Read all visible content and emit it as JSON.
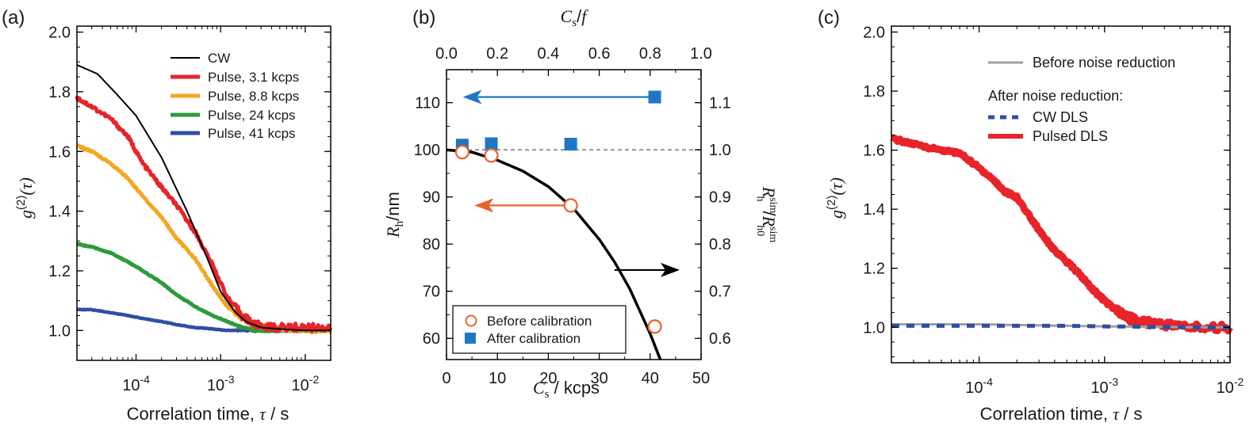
{
  "chart_data": [
    {
      "panel": "(a)",
      "type": "line",
      "xscale": "log",
      "xlabel_text": "Correlation time,",
      "xlabel_sym": "τ",
      "xlabel_unit": "/ s",
      "ylabel_main": "g",
      "ylabel_sup": "(2)",
      "ylabel_arg": "(τ)",
      "xlim": [
        2e-05,
        0.02
      ],
      "ylim": [
        0.9,
        2.02
      ],
      "xticks": [
        {
          "v": 0.0001,
          "base": "10",
          "exp": "-4"
        },
        {
          "v": 0.001,
          "base": "10",
          "exp": "-3"
        },
        {
          "v": 0.01,
          "base": "10",
          "exp": "-2"
        }
      ],
      "yticks": [
        "1.0",
        "1.2",
        "1.4",
        "1.6",
        "1.8",
        "2.0"
      ],
      "legend_position": "top-right",
      "series": [
        {
          "name": "CW",
          "color": "#000000",
          "x": [
            2e-05,
            3.5e-05,
            6e-05,
            0.0001,
            0.0002,
            0.0004,
            0.0007,
            0.001,
            0.0015,
            0.002,
            0.003,
            0.005,
            0.01,
            0.02
          ],
          "y": [
            1.89,
            1.86,
            1.79,
            1.72,
            1.58,
            1.4,
            1.24,
            1.13,
            1.06,
            1.03,
            1.01,
            1.005,
            1.0,
            1.0
          ]
        },
        {
          "name": "Pulse, 3.1 kcps",
          "color": "#e8232a",
          "x": [
            2e-05,
            3e-05,
            5e-05,
            8e-05,
            0.00012,
            0.0002,
            0.0003,
            0.0005,
            0.0008,
            0.0012,
            0.0018,
            0.0025,
            0.004,
            0.007,
            0.012,
            0.02
          ],
          "y": [
            1.78,
            1.75,
            1.71,
            1.65,
            1.56,
            1.48,
            1.42,
            1.33,
            1.22,
            1.11,
            1.05,
            1.02,
            1.01,
            1.01,
            1.01,
            1.01
          ]
        },
        {
          "name": "Pulse, 8.8 kcps",
          "color": "#f5a623",
          "x": [
            2e-05,
            3e-05,
            5e-05,
            8e-05,
            0.00012,
            0.0002,
            0.0003,
            0.0005,
            0.0008,
            0.0012,
            0.0018,
            0.0025,
            0.004,
            0.007,
            0.012,
            0.02
          ],
          "y": [
            1.62,
            1.6,
            1.56,
            1.51,
            1.45,
            1.38,
            1.31,
            1.24,
            1.15,
            1.08,
            1.04,
            1.02,
            1.01,
            1.0,
            1.0,
            1.0
          ]
        },
        {
          "name": "Pulse, 24 kcps",
          "color": "#2e9b3b",
          "x": [
            2e-05,
            3e-05,
            5e-05,
            8e-05,
            0.00012,
            0.0002,
            0.0003,
            0.0005,
            0.0008,
            0.0012,
            0.0018,
            0.0025,
            0.004,
            0.007,
            0.012,
            0.02
          ],
          "y": [
            1.29,
            1.28,
            1.26,
            1.23,
            1.2,
            1.16,
            1.12,
            1.08,
            1.05,
            1.03,
            1.01,
            1.0,
            1.0,
            1.0,
            1.0,
            1.0
          ]
        },
        {
          "name": "Pulse, 41 kcps",
          "color": "#2e4fa3",
          "x": [
            2e-05,
            3e-05,
            5e-05,
            8e-05,
            0.00012,
            0.0002,
            0.0003,
            0.0005,
            0.0008,
            0.0012,
            0.002,
            0.004,
            0.01,
            0.02
          ],
          "y": [
            1.07,
            1.07,
            1.06,
            1.05,
            1.04,
            1.03,
            1.02,
            1.01,
            1.005,
            1.0,
            1.0,
            1.0,
            1.0,
            1.0
          ]
        }
      ]
    },
    {
      "panel": "(b)",
      "type": "scatter",
      "xlabel_sym": "C",
      "xlabel_sub": "s",
      "xlabel_unit": "/ kcps",
      "top_label_sym": "C",
      "top_label_sub": "s",
      "top_label_rest": "/",
      "top_label_f": "f",
      "ylabel_sym": "R",
      "ylabel_sub": "h",
      "ylabel_unit": "/nm",
      "y2label_num": "R",
      "y2label_num_sub": "h",
      "y2label_den_sub": "h0",
      "y2label_sup": "sim",
      "y2label_sep": "/",
      "xlim": [
        0,
        50
      ],
      "ylim": [
        55.5,
        117
      ],
      "y2lim": [
        0.555,
        1.17
      ],
      "top_xlim": [
        0,
        1
      ],
      "xticks": [
        "0",
        "10",
        "20",
        "30",
        "40",
        "50"
      ],
      "yticks": [
        "60",
        "70",
        "80",
        "90",
        "100",
        "110"
      ],
      "y2ticks": [
        "0.6",
        "0.7",
        "0.8",
        "0.9",
        "1.0",
        "1.1"
      ],
      "top_xticks": [
        "0.0",
        "0.2",
        "0.4",
        "0.6",
        "0.8",
        "1.0"
      ],
      "reference_line": 100,
      "legend_position": "bottom-left",
      "series": [
        {
          "name": "Before calibration",
          "marker": "open-circle",
          "color": "#e8632a",
          "x": [
            3.1,
            8.8,
            24.4,
            40.9
          ],
          "y": [
            99.5,
            98.8,
            88.2,
            62.5
          ]
        },
        {
          "name": "After calibration",
          "marker": "filled-square",
          "color": "#1f77c4",
          "x": [
            3.1,
            8.8,
            24.4,
            40.9
          ],
          "y": [
            101,
            101.3,
            101.2,
            111.2
          ]
        }
      ],
      "simulation_curve": {
        "color": "#000000",
        "x": [
          0,
          5,
          10,
          15,
          20,
          25,
          30,
          33,
          36,
          40,
          42
        ],
        "y": [
          100,
          99.5,
          97.8,
          95.5,
          92.2,
          87.5,
          81,
          76.2,
          70.5,
          61,
          55.5
        ]
      },
      "arrows": [
        {
          "color": "#1f77c4",
          "from_x": 40.9,
          "to_x": 3.2,
          "y": 111.2
        },
        {
          "color": "#e8632a",
          "from_x": 24.4,
          "to_x": 5.5,
          "y": 88.2
        },
        {
          "color": "#000000",
          "from_x": 33,
          "to_x": 45.8,
          "y": 74.5
        }
      ]
    },
    {
      "panel": "(c)",
      "type": "line",
      "xscale": "log",
      "xlabel_text": "Correlation time,",
      "xlabel_sym": "τ",
      "xlabel_unit": "/ s",
      "ylabel_main": "g",
      "ylabel_sup": "(2)",
      "ylabel_arg": "(τ)",
      "xlim": [
        2e-05,
        0.01
      ],
      "ylim": [
        0.88,
        2.02
      ],
      "xticks": [
        {
          "v": 0.0001,
          "base": "10",
          "exp": "-4"
        },
        {
          "v": 0.001,
          "base": "10",
          "exp": "-3"
        },
        {
          "v": 0.01,
          "base": "10",
          "exp": "-2"
        }
      ],
      "yticks": [
        "1.0",
        "1.2",
        "1.4",
        "1.6",
        "1.8",
        "2.0"
      ],
      "legend_position": "top-right",
      "legend_subheading": "After noise reduction:",
      "series": [
        {
          "name": "Before noise reduction",
          "color": "#a0a0a0",
          "style": "solid",
          "x": [
            2e-05,
            0.0001,
            0.0005,
            0.001,
            0.002,
            0.005,
            0.01
          ],
          "y": [
            1.01,
            1.01,
            1.005,
            1.003,
            1.002,
            1.0,
            1.0
          ]
        },
        {
          "name": "CW DLS",
          "color": "#2e4fa3",
          "style": "dashed",
          "x": [
            2e-05,
            0.0001,
            0.0005,
            0.001,
            0.002,
            0.005,
            0.01
          ],
          "y": [
            1.005,
            1.005,
            1.005,
            1.003,
            1.002,
            1.0,
            1.0
          ]
        },
        {
          "name": "Pulsed DLS",
          "color": "#e8232a",
          "style": "solid",
          "x": [
            2e-05,
            3e-05,
            5e-05,
            7e-05,
            0.0001,
            0.00013,
            0.00016,
            0.0002,
            0.0003,
            0.0004,
            0.0006,
            0.0008,
            0.001,
            0.0013,
            0.0016,
            0.002,
            0.003,
            0.005,
            0.01
          ],
          "y": [
            1.64,
            1.62,
            1.6,
            1.59,
            1.54,
            1.5,
            1.46,
            1.44,
            1.33,
            1.26,
            1.19,
            1.13,
            1.09,
            1.05,
            1.03,
            1.02,
            1.01,
            1.0,
            1.0
          ]
        }
      ]
    }
  ]
}
